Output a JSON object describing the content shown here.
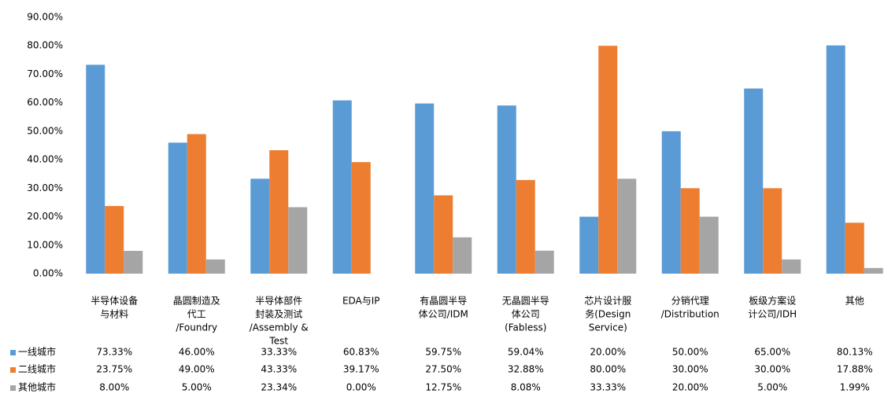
{
  "chart_data": {
    "type": "bar",
    "categories": [
      [
        "半导体设备",
        "与材料"
      ],
      [
        "晶圆制造及",
        "代工",
        "/Foundry"
      ],
      [
        "半导体部件",
        "封装及测试",
        "/Assembly &",
        "Test"
      ],
      [
        "EDA与IP"
      ],
      [
        "有晶圆半导",
        "体公司/IDM"
      ],
      [
        "无晶圆半导",
        "体公司",
        "(Fabless)"
      ],
      [
        "芯片设计服",
        "务(Design",
        "Service)"
      ],
      [
        "分销代理",
        "/Distribution"
      ],
      [
        "板级方案设",
        "计公司/IDH"
      ],
      [
        "其他"
      ]
    ],
    "series": [
      {
        "name": "一线城市",
        "color": "#5b9bd5",
        "values": [
          73.33,
          46,
          33.33,
          60.83,
          59.75,
          59.04,
          20,
          50,
          65,
          80.13
        ],
        "value_labels": [
          "73.33%",
          "46.00%",
          "33.33%",
          "60.83%",
          "59.75%",
          "59.04%",
          "20.00%",
          "50.00%",
          "65.00%",
          "80.13%"
        ]
      },
      {
        "name": "二线城市",
        "color": "#ed7d31",
        "values": [
          23.75,
          49,
          43.33,
          39.17,
          27.5,
          32.88,
          80,
          30,
          30,
          17.88
        ],
        "value_labels": [
          "23.75%",
          "49.00%",
          "43.33%",
          "39.17%",
          "27.50%",
          "32.88%",
          "80.00%",
          "30.00%",
          "30.00%",
          "17.88%"
        ]
      },
      {
        "name": "其他城市",
        "color": "#a5a5a5",
        "values": [
          8,
          5,
          23.34,
          0,
          12.75,
          8.08,
          33.33,
          20,
          5,
          1.99
        ],
        "value_labels": [
          "8.00%",
          "5.00%",
          "23.34%",
          "0.00%",
          "12.75%",
          "8.08%",
          "33.33%",
          "20.00%",
          "5.00%",
          "1.99%"
        ]
      }
    ],
    "ylim": [
      0,
      90
    ],
    "yticks": [
      {
        "value": 0,
        "label": "0.00%"
      },
      {
        "value": 10,
        "label": "10.00%"
      },
      {
        "value": 20,
        "label": "20.00%"
      },
      {
        "value": 30,
        "label": "30.00%"
      },
      {
        "value": 40,
        "label": "40.00%"
      },
      {
        "value": 50,
        "label": "50.00%"
      },
      {
        "value": 60,
        "label": "60.00%"
      },
      {
        "value": 70,
        "label": "70.00%"
      },
      {
        "value": 80,
        "label": "80.00%"
      },
      {
        "value": 90,
        "label": "90.00%"
      }
    ]
  }
}
